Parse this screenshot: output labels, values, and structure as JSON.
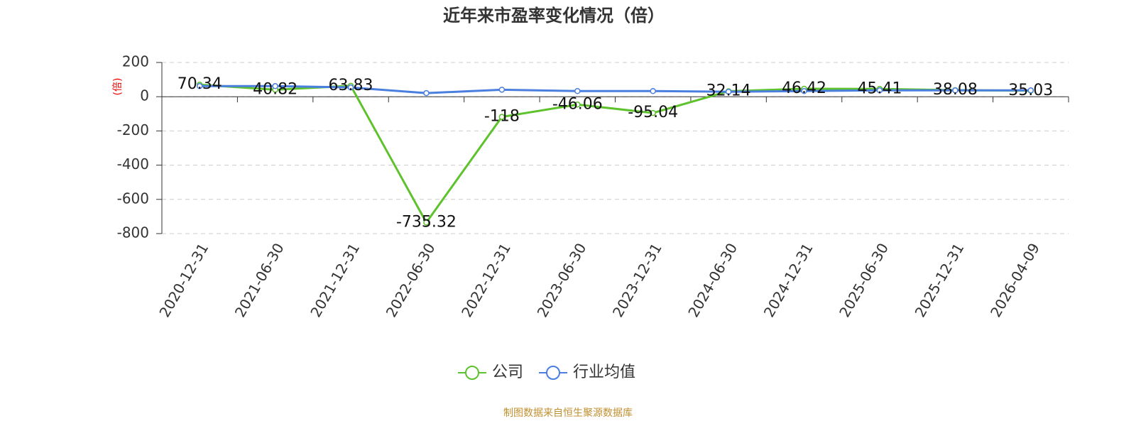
{
  "chart_data": {
    "type": "line",
    "title": "近年来市盈率变化情况（倍）",
    "y_label": "(倍)",
    "categories": [
      "2020-12-31",
      "2021-06-30",
      "2021-12-31",
      "2022-06-30",
      "2022-12-31",
      "2023-06-30",
      "2023-12-31",
      "2024-06-30",
      "2024-12-31",
      "2025-06-30",
      "2025-12-31",
      "2026-04-09"
    ],
    "series": [
      {
        "name": "公司",
        "color": "#5ec22c",
        "values": [
          70.34,
          40.82,
          63.83,
          -735.32,
          -118,
          -46.06,
          -95.04,
          32.14,
          46.42,
          45.41,
          38.08,
          35.03
        ],
        "labels": true
      },
      {
        "name": "行业均值",
        "color": "#4a7fe0",
        "values": [
          62,
          62,
          54,
          21,
          41,
          33,
          33,
          29,
          33,
          37,
          37,
          37
        ],
        "labels": false
      }
    ],
    "ylim": [
      -800,
      200
    ],
    "yticks": [
      -800,
      -600,
      -400,
      -200,
      0,
      200
    ],
    "grid": true,
    "legend": "bottom",
    "source": "制图数据来自恒生聚源数据库"
  }
}
